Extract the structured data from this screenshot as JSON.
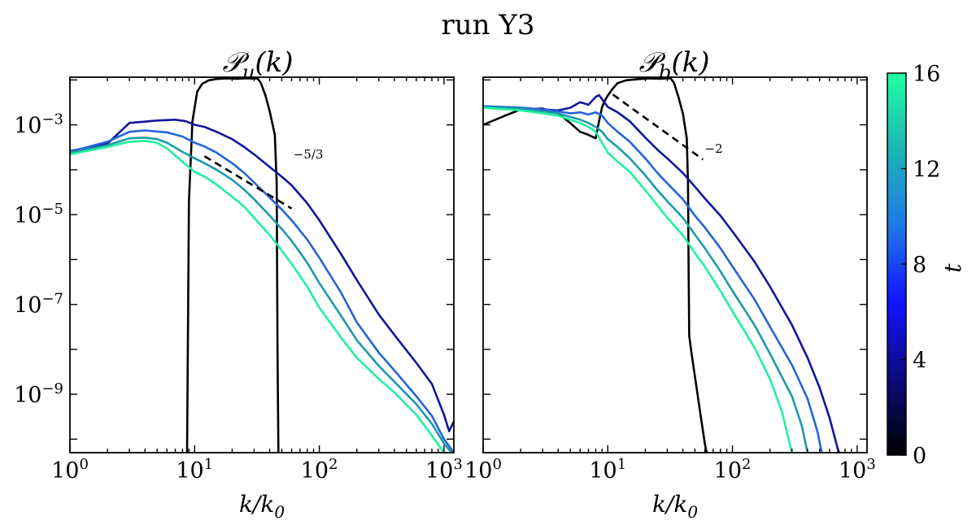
{
  "figure": {
    "suptitle": "run Y3",
    "colorbar": {
      "label": "t",
      "ticks": [
        "0",
        "4",
        "8",
        "12",
        "16"
      ],
      "range": [
        0,
        16
      ],
      "colors": [
        "#000000",
        "#0a0a70",
        "#1212ff",
        "#1f78e8",
        "#1cb4b4",
        "#1effa0"
      ]
    }
  },
  "chart_data": [
    {
      "type": "line",
      "title": "𝒫u(k)",
      "title_main": "𝒫",
      "title_sub": "u",
      "title_arg": "(k)",
      "xlabel": "k/k0",
      "xlabel_main": "k/k",
      "xlabel_sub": "0",
      "xscale": "log",
      "yscale": "log",
      "xlim": [
        1,
        1200
      ],
      "ylim": [
        5e-11,
        0.0115
      ],
      "xticks": [
        {
          "base": "10",
          "exp": "0",
          "v": 1
        },
        {
          "base": "10",
          "exp": "1",
          "v": 10
        },
        {
          "base": "10",
          "exp": "2",
          "v": 100
        },
        {
          "base": "10",
          "exp": "3",
          "v": 1000
        }
      ],
      "yticks": [
        {
          "base": "10",
          "exp": "−3",
          "v": 0.001
        },
        {
          "base": "10",
          "exp": "−5",
          "v": 1e-05
        },
        {
          "base": "10",
          "exp": "−7",
          "v": 1e-07
        },
        {
          "base": "10",
          "exp": "−9",
          "v": 1e-09
        }
      ],
      "annotation": {
        "text": "−5/3",
        "slope": -1.6667,
        "x": [
          12,
          60
        ],
        "y0": 0.0002,
        "label_x": 62,
        "label_y": 0.00018
      },
      "series": [
        {
          "name": "t=0",
          "t": 0,
          "color": "#000000",
          "x": [
            8.7,
            9.0,
            9.6,
            10.5,
            11.5,
            13,
            15,
            18,
            22,
            26,
            30,
            32,
            34,
            37,
            40,
            44,
            45.5,
            46.2,
            47
          ],
          "y": [
            5e-11,
            2e-05,
            0.0012,
            0.0055,
            0.0082,
            0.0098,
            0.0105,
            0.0108,
            0.0106,
            0.0109,
            0.0107,
            0.0108,
            0.0085,
            0.0045,
            0.002,
            0.0006,
            5e-05,
            1e-08,
            5e-11
          ]
        },
        {
          "name": "t=4",
          "t": 4,
          "color": "#12169c",
          "x": [
            1,
            2,
            3,
            5,
            7,
            8.5,
            10,
            12,
            15,
            20,
            25,
            30,
            40,
            50,
            60,
            80,
            100,
            150,
            200,
            300,
            400,
            600,
            800,
            1000,
            1100,
            1200
          ],
          "y": [
            0.00026,
            0.00038,
            0.0011,
            0.00125,
            0.0013,
            0.0012,
            0.001,
            0.0009,
            0.0007,
            0.00048,
            0.00032,
            0.00022,
            0.000115,
            7e-05,
            4.5e-05,
            1.8e-05,
            7.5e-06,
            1.3e-06,
            3.5e-07,
            6e-08,
            2.1e-08,
            5e-09,
            1.7e-09,
            3.5e-10,
            1.5e-10,
            2.5e-10
          ]
        },
        {
          "name": "t=8",
          "t": 8,
          "color": "#2264db",
          "x": [
            1,
            2,
            3,
            4,
            6,
            8,
            10,
            12,
            15,
            20,
            25,
            30,
            40,
            50,
            60,
            80,
            100,
            150,
            200,
            300,
            400,
            600,
            800,
            1000,
            1200
          ],
          "y": [
            0.00025,
            0.00042,
            0.0007,
            0.00075,
            0.00068,
            0.00055,
            0.0004,
            0.00033,
            0.00024,
            0.00014,
            8.5e-05,
            5.2e-05,
            2.4e-05,
            1.3e-05,
            7.5e-06,
            2.8e-06,
            1.1e-06,
            1.8e-07,
            4e-08,
            8.5e-09,
            3.4e-09,
            9e-10,
            3.3e-10,
            1e-10,
            5e-11
          ]
        },
        {
          "name": "t=12",
          "t": 12,
          "color": "#1c9aaa",
          "x": [
            1,
            2,
            3,
            4,
            5,
            6,
            8,
            10,
            12,
            15,
            20,
            25,
            30,
            40,
            50,
            60,
            80,
            100,
            150,
            200,
            300,
            400,
            600,
            800,
            1000,
            1150
          ],
          "y": [
            0.00024,
            0.00035,
            0.0005,
            0.00052,
            0.00048,
            0.0004,
            0.00025,
            0.00018,
            0.00014,
            0.0001,
            6e-05,
            3.6e-05,
            2.2e-05,
            9.5e-06,
            4.8e-06,
            2.6e-06,
            8.5e-07,
            3e-07,
            5.5e-08,
            1.6e-08,
            4.3e-09,
            1.9e-09,
            6e-10,
            2.2e-10,
            8e-11,
            5e-11
          ]
        },
        {
          "name": "t=16",
          "t": 16,
          "color": "#1ff29e",
          "x": [
            1,
            2,
            3,
            4,
            5,
            6,
            8,
            10,
            12,
            15,
            20,
            25,
            30,
            40,
            50,
            60,
            80,
            100,
            150,
            200,
            300,
            400,
            600,
            800,
            1000
          ],
          "y": [
            0.00022,
            0.00032,
            0.00042,
            0.00044,
            0.0004,
            0.0003,
            0.00015,
            9e-05,
            7e-05,
            4.7e-05,
            2.5e-05,
            1.5e-05,
            8.5e-06,
            3.5e-06,
            1.6e-06,
            8e-07,
            2.5e-07,
            8.5e-08,
            1.8e-08,
            6.5e-09,
            2.2e-09,
            1.1e-09,
            3.5e-10,
            1.2e-10,
            5e-11
          ]
        }
      ]
    },
    {
      "type": "line",
      "title": "𝒫b(k)",
      "title_main": "𝒫",
      "title_sub": "b",
      "title_arg": "(k)",
      "xlabel": "k/k0",
      "xlabel_main": "k/k",
      "xlabel_sub": "0",
      "xscale": "log",
      "yscale": "log",
      "xlim": [
        1,
        1200
      ],
      "ylim": [
        5e-11,
        0.0115
      ],
      "xticks": [
        {
          "base": "10",
          "exp": "0",
          "v": 1
        },
        {
          "base": "10",
          "exp": "1",
          "v": 10
        },
        {
          "base": "10",
          "exp": "2",
          "v": 100
        },
        {
          "base": "10",
          "exp": "3",
          "v": 1000
        }
      ],
      "yticks": [],
      "annotation": {
        "text": "−2",
        "slope": -2,
        "x": [
          11,
          58
        ],
        "y0": 0.0047,
        "label_x": 60,
        "label_y": 0.00024
      },
      "series": [
        {
          "name": "t=0",
          "t": 0,
          "color": "#000000",
          "x": [
            1,
            1.5,
            2,
            3,
            4,
            5,
            6,
            7,
            8,
            8.5,
            9,
            9.5,
            10,
            11,
            12,
            14,
            18,
            22,
            26,
            30,
            32,
            34,
            37,
            40,
            43,
            44,
            44.5,
            45,
            47,
            50,
            55,
            60,
            62
          ],
          "y": [
            0.001,
            0.0016,
            0.0022,
            0.0023,
            0.0018,
            0.0011,
            0.0007,
            0.0006,
            0.0005,
            0.0012,
            0.0025,
            0.0035,
            0.0045,
            0.0065,
            0.0085,
            0.0098,
            0.0105,
            0.0108,
            0.0106,
            0.0109,
            0.0108,
            0.0085,
            0.004,
            0.0018,
            0.0005,
            5e-05,
            5e-07,
            2e-08,
            8e-09,
            2.5e-09,
            4e-10,
            8e-11,
            5e-11
          ]
        },
        {
          "name": "t=4",
          "t": 4,
          "color": "#12169c",
          "x": [
            1,
            2,
            3,
            4,
            5,
            6,
            7,
            8,
            8.5,
            9,
            10,
            12,
            15,
            20,
            25,
            30,
            40,
            50,
            60,
            80,
            100,
            150,
            200,
            300,
            400,
            500,
            600,
            700,
            720
          ],
          "y": [
            0.0026,
            0.0024,
            0.0022,
            0.0021,
            0.0024,
            0.0032,
            0.0028,
            0.0042,
            0.0046,
            0.0037,
            0.0025,
            0.0019,
            0.0012,
            0.00052,
            0.00028,
            0.00018,
            8.5e-05,
            4.2e-05,
            2.3e-05,
            9.5e-06,
            4.2e-06,
            9e-07,
            2.5e-07,
            3.5e-08,
            6.5e-09,
            1.4e-09,
            3e-10,
            6e-11,
            5e-11
          ]
        },
        {
          "name": "t=8",
          "t": 8,
          "color": "#2264db",
          "x": [
            1,
            2,
            3,
            4,
            5,
            6,
            7,
            8,
            9,
            10,
            12,
            15,
            20,
            25,
            30,
            40,
            50,
            60,
            80,
            100,
            150,
            200,
            300,
            400,
            480,
            520
          ],
          "y": [
            0.0026,
            0.0024,
            0.0022,
            0.002,
            0.0018,
            0.0019,
            0.0017,
            0.0019,
            0.0016,
            0.0011,
            0.0007,
            0.00042,
            0.00018,
            8.5e-05,
            5e-05,
            2.2e-05,
            9.5e-06,
            5.2e-06,
            1.8e-06,
            7e-07,
            1.3e-07,
            3.2e-08,
            4.5e-09,
            8e-10,
            1.5e-10,
            5e-11
          ]
        },
        {
          "name": "t=12",
          "t": 12,
          "color": "#1c9aaa",
          "x": [
            1,
            2,
            3,
            4,
            5,
            6,
            7,
            8,
            9,
            10,
            12,
            15,
            20,
            25,
            30,
            40,
            50,
            60,
            80,
            100,
            150,
            200,
            300,
            360,
            400
          ],
          "y": [
            0.0025,
            0.0023,
            0.002,
            0.0018,
            0.0015,
            0.0013,
            0.0011,
            0.0009,
            0.0007,
            0.00048,
            0.00032,
            0.00018,
            7.5e-05,
            3.5e-05,
            2e-05,
            8.5e-06,
            3.6e-06,
            1.8e-06,
            5.5e-07,
            2e-07,
            3.5e-08,
            8e-09,
            9e-10,
            2e-10,
            5e-11
          ]
        },
        {
          "name": "t=16",
          "t": 16,
          "color": "#1ff29e",
          "x": [
            1,
            2,
            3,
            4,
            5,
            6,
            7,
            8,
            9,
            10,
            12,
            15,
            20,
            25,
            30,
            40,
            50,
            60,
            80,
            100,
            150,
            200,
            250,
            300
          ],
          "y": [
            0.0024,
            0.0021,
            0.0018,
            0.0016,
            0.0013,
            0.0011,
            0.0009,
            0.0007,
            0.0004,
            0.00024,
            0.00015,
            9e-05,
            3.5e-05,
            1.6e-05,
            8.5e-06,
            3.5e-06,
            1.4e-06,
            7e-07,
            2e-07,
            7e-08,
            1.1e-08,
            2.2e-09,
            4e-10,
            5e-11
          ]
        }
      ]
    }
  ]
}
